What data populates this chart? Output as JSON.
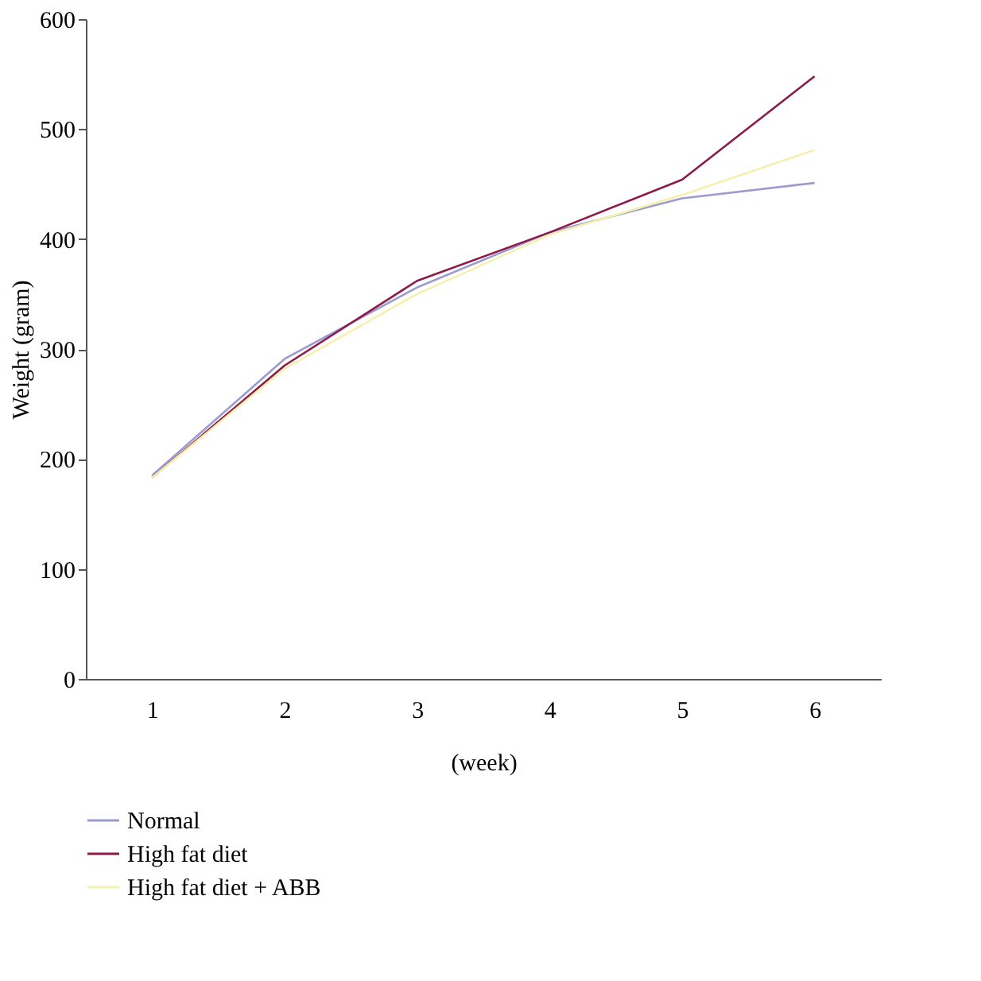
{
  "chart_data": {
    "type": "line",
    "xlabel": "(week)",
    "ylabel": "Weight (gram)",
    "categories": [
      "1",
      "2",
      "3",
      "4",
      "5",
      "6"
    ],
    "series": [
      {
        "name": "Normal",
        "color": "#9b9bd0",
        "values": [
          185,
          291,
          356,
          406,
          437,
          451
        ]
      },
      {
        "name": "High fat diet",
        "color": "#8c1a4a",
        "values": [
          183,
          285,
          362,
          406,
          454,
          548
        ]
      },
      {
        "name": "High fat diet + ABB",
        "color": "#f5f0b0",
        "values": [
          183,
          282,
          350,
          404,
          440,
          481
        ]
      }
    ],
    "ylim": [
      0,
      600
    ],
    "yticks": [
      0,
      100,
      200,
      300,
      400,
      500,
      600
    ],
    "grid": false,
    "legend": "bottom",
    "marker": "none",
    "line_style": "solid"
  }
}
